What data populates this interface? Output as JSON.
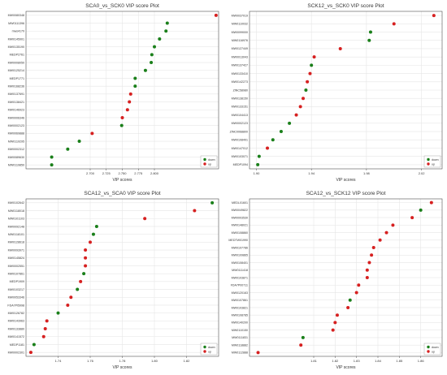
{
  "colors": {
    "down": "#1a7f1a",
    "up": "#d62020",
    "grid": "#e6e6e6",
    "frame": "#4d4d4d",
    "text": "#333333"
  },
  "legend": {
    "down_label": "down",
    "up_label": "up",
    "position": "bottom-right"
  },
  "chart_data": [
    {
      "type": "scatter",
      "title": "SCA0_vs_SCK0 VIP score Plot",
      "xlabel": "VIP scores",
      "ylabel": "",
      "xlim": [
        2.6,
        2.9
      ],
      "xticks": [
        "2.700",
        "2.725",
        "2.750",
        "2.775",
        "2.800"
      ],
      "xtick_values": [
        2.7,
        2.725,
        2.75,
        2.775,
        2.8
      ],
      "grid": true,
      "legend_position": "bottom-right",
      "points": [
        {
          "label": "MW0080348",
          "vip": 2.896,
          "group": "up"
        },
        {
          "label": "MW0111396",
          "vip": 2.82,
          "group": "down"
        },
        {
          "label": "mws4179",
          "vip": 2.818,
          "group": "down"
        },
        {
          "label": "MW0145901",
          "vip": 2.808,
          "group": "down"
        },
        {
          "label": "MW0135190",
          "vip": 2.8,
          "group": "down"
        },
        {
          "label": "MEDP2761",
          "vip": 2.796,
          "group": "down"
        },
        {
          "label": "MW0008050",
          "vip": 2.795,
          "group": "down"
        },
        {
          "label": "MW0125214",
          "vip": 2.786,
          "group": "down"
        },
        {
          "label": "MEDP1771",
          "vip": 2.77,
          "group": "down"
        },
        {
          "label": "MW0168236",
          "vip": 2.77,
          "group": "down"
        },
        {
          "label": "MW0137691",
          "vip": 2.763,
          "group": "up"
        },
        {
          "label": "MW0138421",
          "vip": 2.761,
          "group": "up"
        },
        {
          "label": "MW0146923",
          "vip": 2.758,
          "group": "up"
        },
        {
          "label": "MW0006346",
          "vip": 2.75,
          "group": "up"
        },
        {
          "label": "MW0002123",
          "vip": 2.749,
          "group": "down"
        },
        {
          "label": "MW0069888",
          "vip": 2.703,
          "group": "up"
        },
        {
          "label": "MW0119295",
          "vip": 2.683,
          "group": "down"
        },
        {
          "label": "MW0002312",
          "vip": 2.665,
          "group": "down"
        },
        {
          "label": "MW0089630",
          "vip": 2.64,
          "group": "down"
        },
        {
          "label": "MW0119850",
          "vip": 2.64,
          "group": "down"
        }
      ]
    },
    {
      "type": "scatter",
      "title": "SCK12_vs_SCK0 VIP score Plot",
      "xlabel": "VIP scores",
      "ylabel": "",
      "xlim": [
        1.895,
        2.035
      ],
      "xticks": [
        "1.90",
        "1.94",
        "1.98",
        "2.02"
      ],
      "xtick_values": [
        1.9,
        1.94,
        1.98,
        2.02
      ],
      "grid": true,
      "legend_position": "bottom-right",
      "points": [
        {
          "label": "MW0037019",
          "vip": 2.029,
          "group": "up"
        },
        {
          "label": "MW0110032",
          "vip": 2.0,
          "group": "up"
        },
        {
          "label": "MW0099000",
          "vip": 1.983,
          "group": "down"
        },
        {
          "label": "MW0116976",
          "vip": 1.982,
          "group": "down"
        },
        {
          "label": "MW0127449",
          "vip": 1.961,
          "group": "up"
        },
        {
          "label": "MW0013043",
          "vip": 1.942,
          "group": "up"
        },
        {
          "label": "MW0137427",
          "vip": 1.94,
          "group": "down"
        },
        {
          "label": "MW0133410",
          "vip": 1.939,
          "group": "up"
        },
        {
          "label": "MW0142273",
          "vip": 1.937,
          "group": "up"
        },
        {
          "label": "ZINC58980",
          "vip": 1.936,
          "group": "down"
        },
        {
          "label": "MW0138150",
          "vip": 1.934,
          "group": "up"
        },
        {
          "label": "MW0133151",
          "vip": 1.932,
          "group": "up"
        },
        {
          "label": "MW0104413",
          "vip": 1.929,
          "group": "up"
        },
        {
          "label": "MW0002123",
          "vip": 1.924,
          "group": "down"
        },
        {
          "label": "ZINC0068800",
          "vip": 1.918,
          "group": "down"
        },
        {
          "label": "MW0108491",
          "vip": 1.912,
          "group": "down"
        },
        {
          "label": "MW0147012",
          "vip": 1.908,
          "group": "up"
        },
        {
          "label": "MW0103071",
          "vip": 1.902,
          "group": "down"
        },
        {
          "label": "MEDP1094",
          "vip": 1.901,
          "group": "down"
        }
      ]
    },
    {
      "type": "scatter",
      "title": "SCA12_vs_SCA0 VIP score Plot",
      "xlabel": "VIP scores",
      "ylabel": "",
      "xlim": [
        1.72,
        1.84
      ],
      "xticks": [
        "1.74",
        "1.76",
        "1.78",
        "1.80",
        "1.82"
      ],
      "xtick_values": [
        1.74,
        1.76,
        1.78,
        1.8,
        1.82
      ],
      "grid": true,
      "legend_position": "bottom-right",
      "points": [
        {
          "label": "MW0102642",
          "vip": 1.836,
          "group": "down"
        },
        {
          "label": "MW0118018",
          "vip": 1.825,
          "group": "up"
        },
        {
          "label": "MW0101103",
          "vip": 1.794,
          "group": "up"
        },
        {
          "label": "MW0092148",
          "vip": 1.764,
          "group": "down"
        },
        {
          "label": "MW0118101",
          "vip": 1.762,
          "group": "down"
        },
        {
          "label": "MW0128618",
          "vip": 1.76,
          "group": "up"
        },
        {
          "label": "MW0093971",
          "vip": 1.757,
          "group": "up"
        },
        {
          "label": "MW0145824",
          "vip": 1.757,
          "group": "up"
        },
        {
          "label": "MW0002551",
          "vip": 1.757,
          "group": "up"
        },
        {
          "label": "MW0107861",
          "vip": 1.756,
          "group": "down"
        },
        {
          "label": "MEDP1909",
          "vip": 1.754,
          "group": "up"
        },
        {
          "label": "MW0103217",
          "vip": 1.752,
          "group": "down"
        },
        {
          "label": "MW0053346",
          "vip": 1.748,
          "group": "up"
        },
        {
          "label": "FDA7PI5998",
          "vip": 1.746,
          "group": "up"
        },
        {
          "label": "MW0126782",
          "vip": 1.74,
          "group": "down"
        },
        {
          "label": "MW0143963",
          "vip": 1.733,
          "group": "up"
        },
        {
          "label": "MW0133880",
          "vip": 1.732,
          "group": "up"
        },
        {
          "label": "MW0141572",
          "vip": 1.731,
          "group": "up"
        },
        {
          "label": "MEDP1181",
          "vip": 1.725,
          "group": "down"
        },
        {
          "label": "MW0002301",
          "vip": 1.723,
          "group": "up"
        }
      ]
    },
    {
      "type": "scatter",
      "title": "SCA12_vs_SCK12 VIP score Plot",
      "xlabel": "VIP scores",
      "ylabel": "",
      "xlim": [
        1.78,
        1.87
      ],
      "xticks": [
        "1.81",
        "1.82",
        "1.83",
        "1.84",
        "1.85",
        "1.86"
      ],
      "xtick_values": [
        1.81,
        1.82,
        1.83,
        1.84,
        1.85,
        1.86
      ],
      "grid": true,
      "legend_position": "bottom-right",
      "points": [
        {
          "label": "MEDL01601",
          "vip": 1.865,
          "group": "up"
        },
        {
          "label": "MW0049822",
          "vip": 1.86,
          "group": "down"
        },
        {
          "label": "MW0003530",
          "vip": 1.856,
          "group": "up"
        },
        {
          "label": "MW0148021",
          "vip": 1.847,
          "group": "up"
        },
        {
          "label": "MW0108860",
          "vip": 1.844,
          "group": "up"
        },
        {
          "label": "MEDTW01990",
          "vip": 1.841,
          "group": "up"
        },
        {
          "label": "MW0107786",
          "vip": 1.838,
          "group": "up"
        },
        {
          "label": "MW0109865",
          "vip": 1.837,
          "group": "up"
        },
        {
          "label": "MW0108401",
          "vip": 1.836,
          "group": "up"
        },
        {
          "label": "MW0111418",
          "vip": 1.835,
          "group": "up"
        },
        {
          "label": "MW0103871",
          "vip": 1.835,
          "group": "up"
        },
        {
          "label": "FDA7P00711",
          "vip": 1.831,
          "group": "up"
        },
        {
          "label": "MW0120163",
          "vip": 1.83,
          "group": "up"
        },
        {
          "label": "MW0107861",
          "vip": 1.827,
          "group": "down"
        },
        {
          "label": "MW0103821",
          "vip": 1.826,
          "group": "up"
        },
        {
          "label": "MW0108785",
          "vip": 1.821,
          "group": "up"
        },
        {
          "label": "MW0140200",
          "vip": 1.82,
          "group": "up"
        },
        {
          "label": "MW0110150",
          "vip": 1.819,
          "group": "up"
        },
        {
          "label": "MW0111831",
          "vip": 1.805,
          "group": "down"
        },
        {
          "label": "MW0118882",
          "vip": 1.804,
          "group": "up"
        },
        {
          "label": "MW0112888",
          "vip": 1.784,
          "group": "up"
        }
      ]
    }
  ]
}
